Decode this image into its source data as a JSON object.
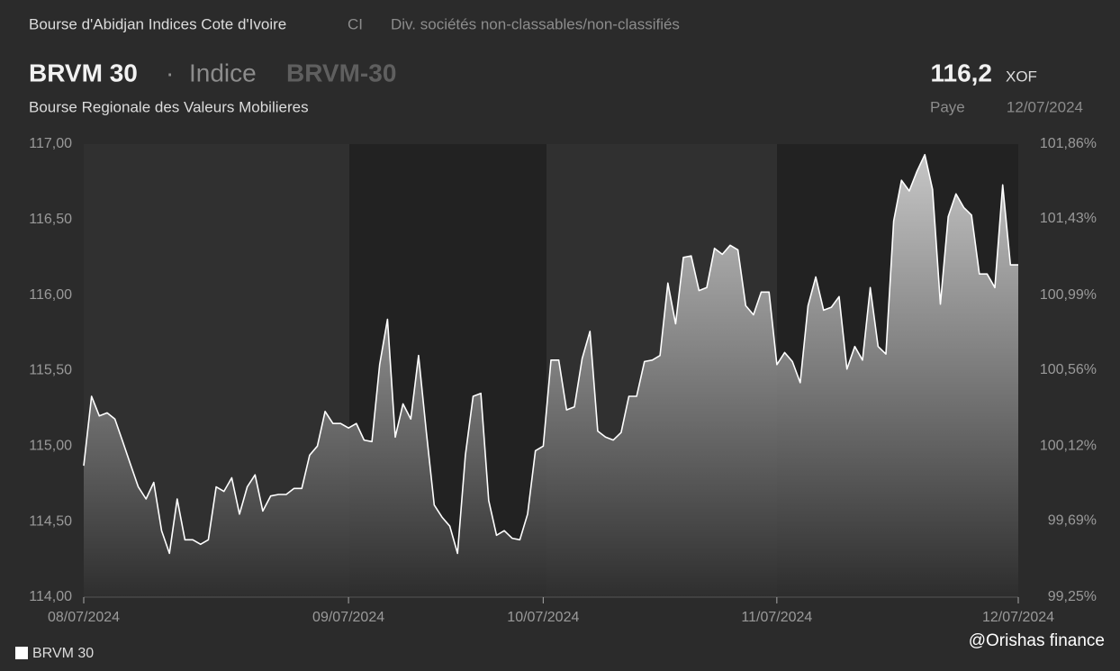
{
  "header": {
    "exchange": "Bourse d'Abidjan Indices Cote d'Ivoire",
    "country": "CI",
    "sector": "Div. sociétés non-classables/non-classifiés",
    "name": "BRVM 30",
    "separator": "·",
    "kind": "Indice",
    "symbol": "BRVM-30",
    "subtitle": "Bourse Regionale des Valeurs Mobilieres",
    "price": "116,2",
    "currency": "XOF",
    "status": "Paye",
    "date": "12/07/2024"
  },
  "watermark": "@Orishas finance",
  "chart_data": {
    "type": "area",
    "categories": [
      "08/07/2024",
      null,
      null,
      null,
      null,
      null,
      null,
      null,
      null,
      null,
      null,
      null,
      null,
      null,
      null,
      null,
      null,
      null,
      null,
      null,
      null,
      null,
      null,
      null,
      null,
      null,
      null,
      null,
      null,
      null,
      null,
      null,
      null,
      null,
      "09/07/2024",
      null,
      null,
      null,
      null,
      null,
      null,
      null,
      null,
      null,
      null,
      null,
      null,
      null,
      null,
      null,
      null,
      null,
      null,
      null,
      null,
      null,
      null,
      null,
      null,
      "10/07/2024",
      null,
      null,
      null,
      null,
      null,
      null,
      null,
      null,
      null,
      null,
      null,
      null,
      null,
      null,
      null,
      null,
      null,
      null,
      null,
      null,
      null,
      null,
      null,
      null,
      null,
      null,
      null,
      null,
      null,
      "11/07/2024",
      null,
      null,
      null,
      null,
      null,
      null,
      null,
      null,
      null,
      null,
      null,
      null,
      null,
      null,
      null,
      null,
      null,
      null,
      null,
      null,
      null,
      null,
      null,
      null,
      null,
      null,
      null,
      null,
      null,
      null,
      "12/07/2024"
    ],
    "series": [
      {
        "name": "BRVM 30",
        "color": "#ffffff",
        "values": [
          114.87,
          115.33,
          115.2,
          115.22,
          115.18,
          115.03,
          114.88,
          114.73,
          114.65,
          114.76,
          114.44,
          114.29,
          114.65,
          114.38,
          114.38,
          114.35,
          114.38,
          114.73,
          114.7,
          114.79,
          114.55,
          114.73,
          114.81,
          114.57,
          114.67,
          114.68,
          114.68,
          114.72,
          114.72,
          114.94,
          115.0,
          115.23,
          115.15,
          115.15,
          115.12,
          115.15,
          115.04,
          115.03,
          115.54,
          115.84,
          115.06,
          115.28,
          115.18,
          115.6,
          115.09,
          114.61,
          114.53,
          114.47,
          114.29,
          114.94,
          115.33,
          115.35,
          114.64,
          114.41,
          114.44,
          114.39,
          114.38,
          114.55,
          114.97,
          115.0,
          115.57,
          115.57,
          115.24,
          115.26,
          115.58,
          115.76,
          115.1,
          115.06,
          115.04,
          115.09,
          115.33,
          115.33,
          115.56,
          115.57,
          115.6,
          116.08,
          115.81,
          116.25,
          116.26,
          116.03,
          116.05,
          116.31,
          116.27,
          116.33,
          116.3,
          115.93,
          115.87,
          116.02,
          116.02,
          115.54,
          115.62,
          115.56,
          115.42,
          115.93,
          116.12,
          115.9,
          115.92,
          115.99,
          115.51,
          115.66,
          115.57,
          116.05,
          115.66,
          115.61,
          116.49,
          116.76,
          116.69,
          116.82,
          116.93,
          116.7,
          115.94,
          116.52,
          116.67,
          116.58,
          116.53,
          116.14,
          116.14,
          116.05,
          116.73,
          116.2,
          116.2
        ]
      }
    ],
    "ylim": [
      114,
      117
    ],
    "yticks": [
      {
        "value": 114,
        "label": "114,00"
      },
      {
        "value": 114.5,
        "label": "114,50"
      },
      {
        "value": 115,
        "label": "115,00"
      },
      {
        "value": 115.5,
        "label": "115,50"
      },
      {
        "value": 116,
        "label": "116,00"
      },
      {
        "value": 116.5,
        "label": "116,50"
      },
      {
        "value": 117,
        "label": "117,00"
      }
    ],
    "y2lim": [
      99.25,
      101.86
    ],
    "y2ticks": [
      {
        "value": 99.25,
        "label": "99,25%"
      },
      {
        "value": 99.69,
        "label": "99,69%"
      },
      {
        "value": 100.12,
        "label": "100,12%"
      },
      {
        "value": 100.56,
        "label": "100,56%"
      },
      {
        "value": 100.99,
        "label": "100,99%"
      },
      {
        "value": 101.43,
        "label": "101,43%"
      },
      {
        "value": 101.86,
        "label": "101,86%"
      }
    ]
  }
}
